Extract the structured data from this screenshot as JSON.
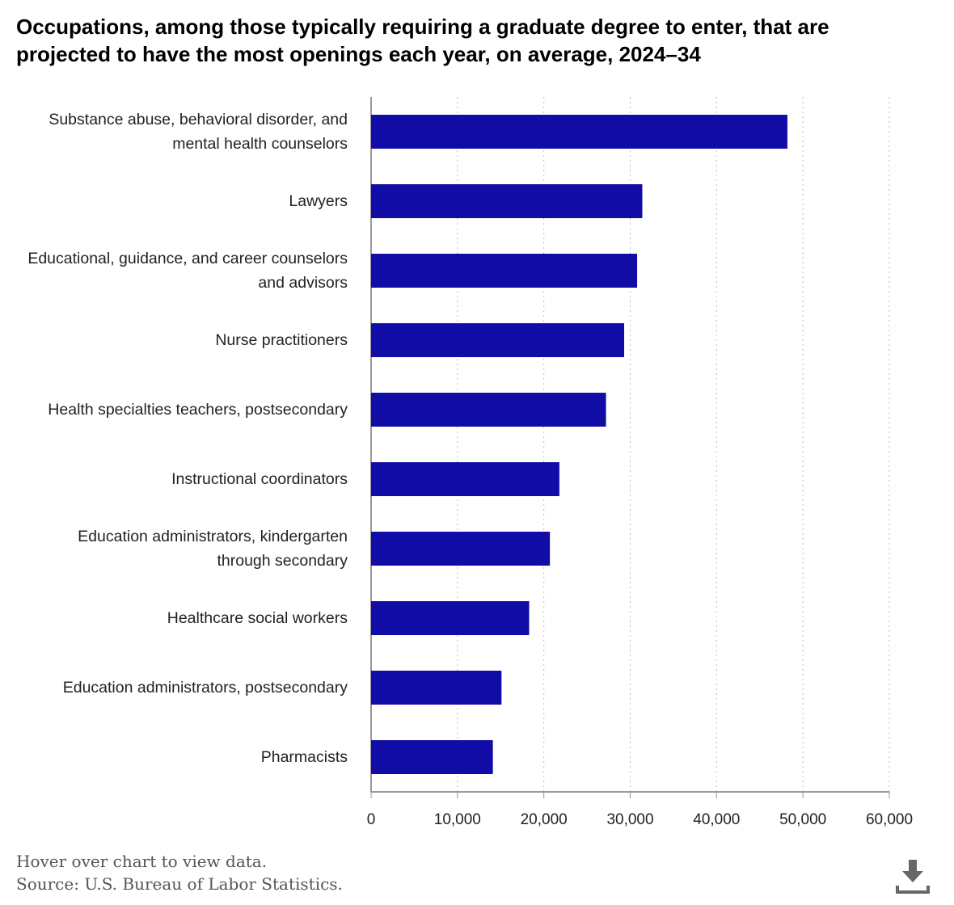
{
  "chart_data": {
    "type": "bar",
    "orientation": "horizontal",
    "title": "Occupations, among those typically requiring a graduate degree to enter, that are projected to have the most openings each year, on average, 2024–34",
    "categories": [
      "Substance abuse, behavioral disorder, and mental health counselors",
      "Lawyers",
      "Educational, guidance, and career counselors and advisors",
      "Nurse practitioners",
      "Health specialties teachers, postsecondary",
      "Instructional coordinators",
      "Education administrators, kindergarten through secondary",
      "Healthcare social workers",
      "Education administrators, postsecondary",
      "Pharmacists"
    ],
    "values": [
      48200,
      31400,
      30800,
      29300,
      27200,
      21800,
      20700,
      18300,
      15100,
      14100
    ],
    "color": "#120ca6",
    "xlim": [
      0,
      60000
    ],
    "xticks": [
      0,
      {
        "value": 10000,
        "label": "10,000"
      },
      {
        "value": 20000,
        "label": "20,000"
      },
      {
        "value": 30000,
        "label": "30,000"
      },
      {
        "value": 40000,
        "label": "40,000"
      },
      {
        "value": 50000,
        "label": "50,000"
      },
      {
        "value": 60000,
        "label": "60,000"
      }
    ],
    "grid": true
  },
  "footer": {
    "note": "Hover over chart to view data.",
    "source": "Source: U.S. Bureau of Labor Statistics."
  }
}
